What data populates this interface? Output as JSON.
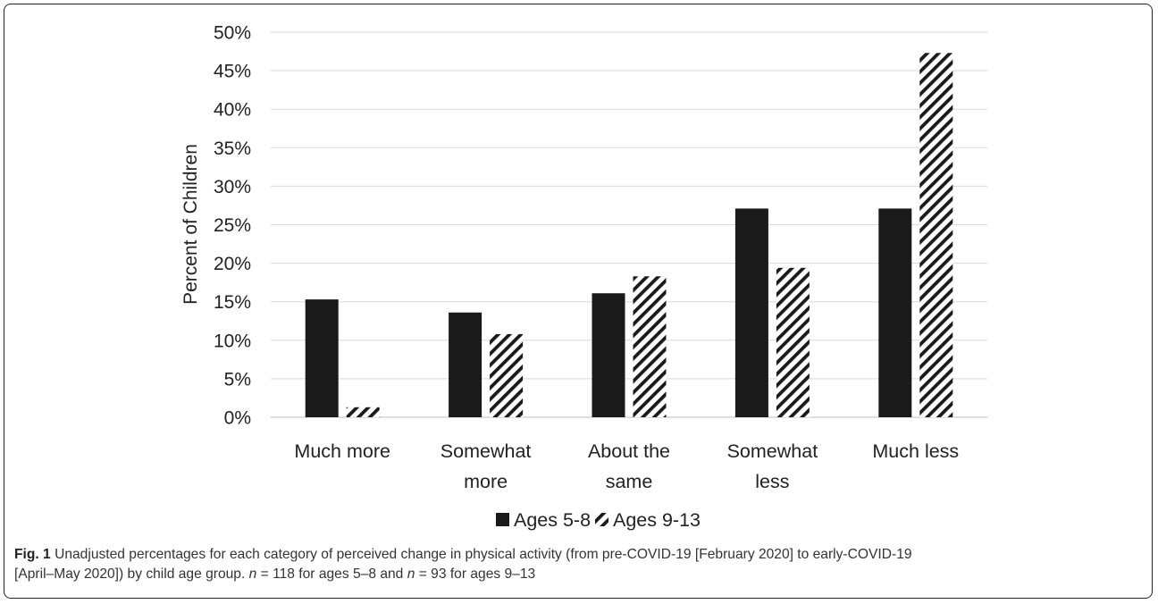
{
  "chart_data": {
    "type": "bar",
    "ylabel": "Percent of Children",
    "ylim": [
      0,
      50
    ],
    "yticks": [
      "0%",
      "5%",
      "10%",
      "15%",
      "20%",
      "25%",
      "30%",
      "35%",
      "40%",
      "45%",
      "50%"
    ],
    "grid": true,
    "legend_position": "bottom",
    "categories": [
      [
        "Much more"
      ],
      [
        "Somewhat",
        "more"
      ],
      [
        "About the",
        "same"
      ],
      [
        "Somewhat",
        "less"
      ],
      [
        "Much less"
      ]
    ],
    "series": [
      {
        "name": "Ages 5-8",
        "values": [
          15.3,
          13.6,
          16.1,
          27.1,
          27.1
        ],
        "fill": "solid",
        "color": "#1a1a1a"
      },
      {
        "name": "Ages 9-13",
        "values": [
          1.3,
          10.8,
          18.3,
          19.4,
          47.3
        ],
        "fill": "hatch",
        "color": "#1a1a1a"
      }
    ]
  },
  "caption": {
    "fig_label": "Fig. 1",
    "line1": "Unadjusted percentages for each category of perceived change in physical activity (from pre-COVID-19 [February 2020] to early-COVID-19",
    "line2_a": "[April–May 2020]) by child age group. ",
    "n_symbol_1": "n",
    "line2_b": " = 118 for ages 5–8 and ",
    "n_symbol_2": "n",
    "line2_c": " = 93 for ages 9–13"
  }
}
